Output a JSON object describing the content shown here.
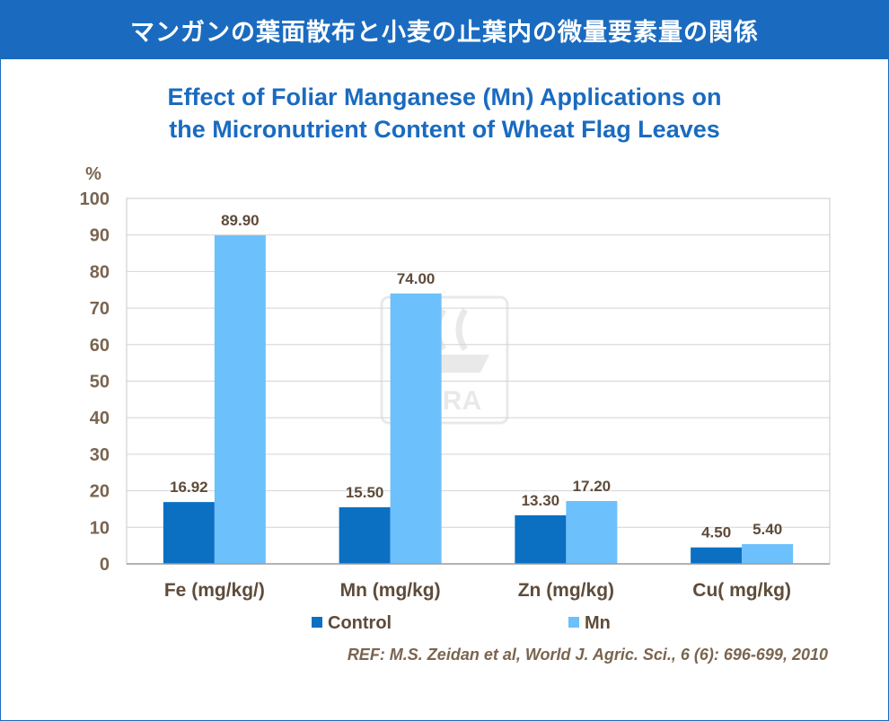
{
  "banner": {
    "title": "マンガンの葉面散布と小麦の止葉内の微量要素量の関係"
  },
  "watermark": {
    "text": "YARA"
  },
  "reference": "REF: M.S. Zeidan et al, World J. Agric. Sci., 6 (6): 696-699, 2010",
  "colors": {
    "banner": "#1a6bc0",
    "title": "#1a6bc0",
    "control": "#0b6fc2",
    "mn": "#6cc0fb",
    "axis_text": "#7a6550",
    "label_text": "#5e4b3a"
  },
  "chart_data": {
    "type": "bar",
    "title": [
      "Effect of Foliar Manganese (Mn) Applications on",
      "the Micronutrient Content of Wheat Flag Leaves"
    ],
    "ylabel": "%",
    "xlabel": "",
    "ylim": [
      0,
      100
    ],
    "yticks": [
      "0",
      "10",
      "20",
      "30",
      "40",
      "50",
      "60",
      "70",
      "80",
      "90",
      "100"
    ],
    "categories": [
      "Fe (mg/kg/)",
      "Mn (mg/kg)",
      "Zn (mg/kg)",
      "Cu( mg/kg)"
    ],
    "series": [
      {
        "name": "Control",
        "values": [
          16.92,
          15.5,
          13.3,
          4.5
        ],
        "labels": [
          "16.92",
          "15.50",
          "13.30",
          "4.50"
        ],
        "color": "#0b6fc2"
      },
      {
        "name": "Mn",
        "values": [
          89.9,
          74.0,
          17.2,
          5.4
        ],
        "labels": [
          "89.90",
          "74.00",
          "17.20",
          "5.40"
        ],
        "color": "#6cc0fb"
      }
    ],
    "grid": true,
    "legend": "bottom"
  }
}
